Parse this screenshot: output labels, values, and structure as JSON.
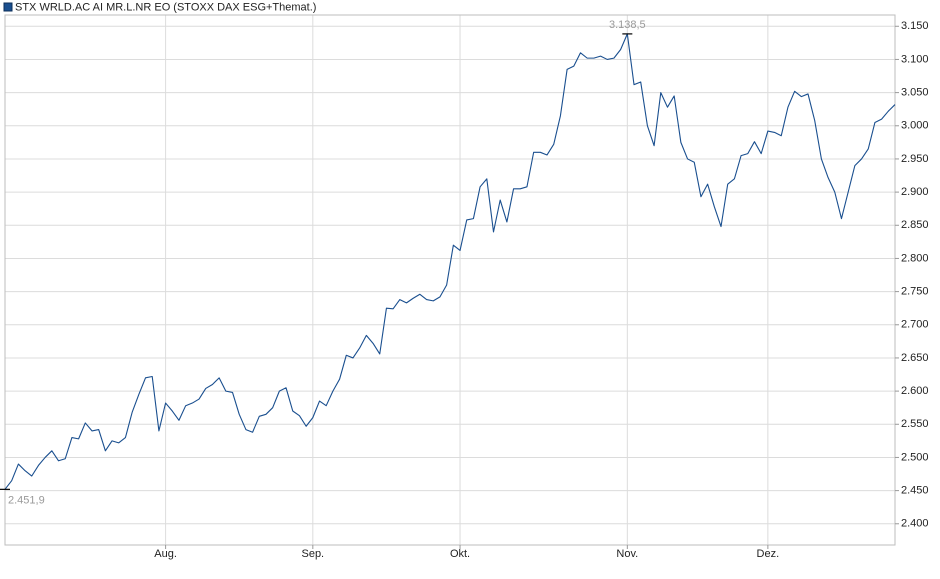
{
  "chart_data": {
    "type": "line",
    "title": "STX WRLD.AC AI MR.L.NR EO (STOXX DAX ESG+Themat.)",
    "max_label": "3.138,5",
    "min_label": "2.451,9",
    "categories": [
      null,
      null,
      null,
      null,
      null,
      null,
      null,
      null,
      null,
      null,
      null,
      null,
      null,
      null,
      null,
      null,
      null,
      null,
      null,
      null,
      null,
      null,
      null,
      null,
      "Aug.",
      null,
      null,
      null,
      null,
      null,
      null,
      null,
      null,
      null,
      null,
      null,
      null,
      null,
      null,
      null,
      null,
      null,
      null,
      null,
      null,
      null,
      "Sep.",
      null,
      null,
      null,
      null,
      null,
      null,
      null,
      null,
      null,
      null,
      null,
      null,
      null,
      null,
      null,
      null,
      null,
      null,
      null,
      null,
      null,
      "Okt.",
      null,
      null,
      null,
      null,
      null,
      null,
      null,
      null,
      null,
      null,
      null,
      null,
      null,
      null,
      null,
      null,
      null,
      null,
      null,
      null,
      null,
      null,
      null,
      null,
      "Nov.",
      null,
      null,
      null,
      null,
      null,
      null,
      null,
      null,
      null,
      null,
      null,
      null,
      null,
      null,
      null,
      null,
      null,
      null,
      null,
      null,
      "Dez.",
      null,
      null,
      null,
      null,
      null,
      null,
      null,
      null,
      null,
      null,
      null,
      null,
      null,
      null,
      null,
      null,
      null,
      null,
      null
    ],
    "series": [
      {
        "name": "STX WRLD.AC AI MR.L.NR EO (STOXX DAX ESG+Themat.)",
        "color": "#1a4f8f",
        "values": [
          2451.9,
          2465,
          2490,
          2480,
          2472,
          2488,
          2500,
          2510,
          2495,
          2498,
          2530,
          2528,
          2552,
          2540,
          2542,
          2510,
          2525,
          2522,
          2530,
          2568,
          2595,
          2620,
          2622,
          2540,
          2582,
          2570,
          2556,
          2578,
          2582,
          2588,
          2604,
          2610,
          2620,
          2600,
          2598,
          2565,
          2542,
          2538,
          2562,
          2565,
          2575,
          2600,
          2605,
          2570,
          2563,
          2547,
          2560,
          2585,
          2578,
          2600,
          2618,
          2654,
          2650,
          2665,
          2684,
          2672,
          2656,
          2725,
          2724,
          2738,
          2733,
          2740,
          2746,
          2738,
          2736,
          2742,
          2760,
          2820,
          2812,
          2858,
          2860,
          2908,
          2920,
          2840,
          2888,
          2855,
          2905,
          2905,
          2908,
          2960,
          2960,
          2956,
          2972,
          3015,
          3085,
          3090,
          3110,
          3102,
          3102,
          3105,
          3100,
          3102,
          3115,
          3138.5,
          3062,
          3066,
          3000,
          2970,
          3050,
          3028,
          3045,
          2975,
          2950,
          2945,
          2893,
          2912,
          2878,
          2848,
          2912,
          2920,
          2955,
          2958,
          2976,
          2958,
          2992,
          2990,
          2985,
          3028,
          3052,
          3044,
          3048,
          3008,
          2950,
          2922,
          2900,
          2860,
          2900,
          2940,
          2950,
          2965,
          3005,
          3010,
          3022,
          3032
        ]
      }
    ],
    "ylim": [
      2368,
      3167
    ],
    "yticks": [
      {
        "value": 2400,
        "label": "2.400"
      },
      {
        "value": 2450,
        "label": "2.450"
      },
      {
        "value": 2500,
        "label": "2.500"
      },
      {
        "value": 2550,
        "label": "2.550"
      },
      {
        "value": 2600,
        "label": "2.600"
      },
      {
        "value": 2650,
        "label": "2.650"
      },
      {
        "value": 2700,
        "label": "2.700"
      },
      {
        "value": 2750,
        "label": "2.750"
      },
      {
        "value": 2800,
        "label": "2.800"
      },
      {
        "value": 2850,
        "label": "2.850"
      },
      {
        "value": 2900,
        "label": "2.900"
      },
      {
        "value": 2950,
        "label": "2.950"
      },
      {
        "value": 3000,
        "label": "3.000"
      },
      {
        "value": 3050,
        "label": "3.050"
      },
      {
        "value": 3100,
        "label": "3.100"
      },
      {
        "value": 3150,
        "label": "3.150"
      }
    ],
    "grid": true
  }
}
